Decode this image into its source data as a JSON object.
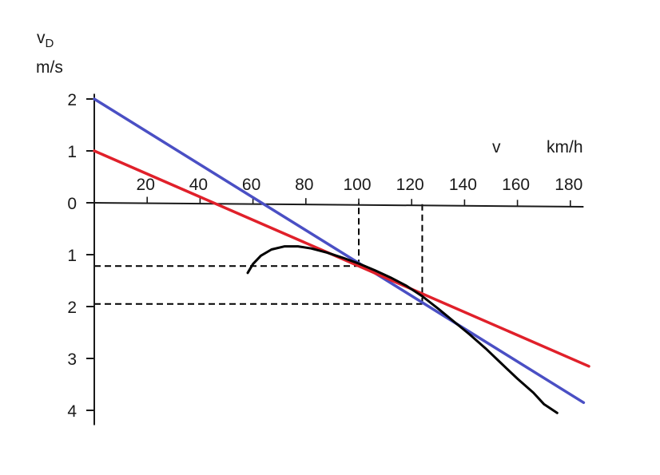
{
  "chart_data": {
    "type": "line",
    "title": "",
    "xlabel": "v",
    "xunit": "km/h",
    "ylabel_main": "v",
    "ylabel_sub": "D",
    "yunit": "m/s",
    "xlim": [
      0,
      185
    ],
    "ylim": [
      -4.1,
      2.1
    ],
    "x_ticks": [
      20,
      40,
      60,
      80,
      100,
      120,
      140,
      160,
      180
    ],
    "x_tick_labels": [
      "20",
      "40",
      "60",
      "80",
      "100",
      "120",
      "140",
      "160",
      "180"
    ],
    "y_ticks": [
      2,
      1,
      0,
      -1,
      -2,
      -3,
      -4
    ],
    "y_tick_labels": [
      "2",
      "1",
      "0",
      "1",
      "2",
      "3",
      "4"
    ],
    "grid": false,
    "series": [
      {
        "color": "#4a4fc4",
        "x": [
          0,
          185
        ],
        "y": [
          2.0,
          -3.85
        ]
      },
      {
        "color": "#e0202a",
        "x": [
          0,
          187
        ],
        "y": [
          1.0,
          -3.15
        ]
      },
      {
        "color": "#000000",
        "x": [
          58,
          60,
          63,
          67,
          72,
          77,
          82,
          88,
          94,
          100,
          106,
          112,
          118,
          124,
          130,
          136,
          142,
          148,
          154,
          160,
          166,
          170,
          175
        ],
        "y": [
          -1.35,
          -1.18,
          -1.02,
          -0.9,
          -0.84,
          -0.84,
          -0.88,
          -0.96,
          -1.06,
          -1.17,
          -1.3,
          -1.44,
          -1.6,
          -1.8,
          -2.04,
          -2.29,
          -2.54,
          -2.81,
          -3.1,
          -3.39,
          -3.66,
          -3.88,
          -4.05
        ]
      }
    ],
    "reference_lines": [
      {
        "from": [
          0,
          -1.22
        ],
        "to": [
          100,
          -1.22
        ]
      },
      {
        "from": [
          100,
          -1.22
        ],
        "to": [
          100,
          0
        ]
      },
      {
        "from": [
          0,
          -1.95
        ],
        "to": [
          124,
          -1.95
        ]
      },
      {
        "from": [
          124,
          -1.95
        ],
        "to": [
          124,
          0
        ]
      }
    ],
    "colors": {
      "axis": "#1a1a1a",
      "text": "#1a1a1a",
      "reference": "#000000"
    }
  }
}
